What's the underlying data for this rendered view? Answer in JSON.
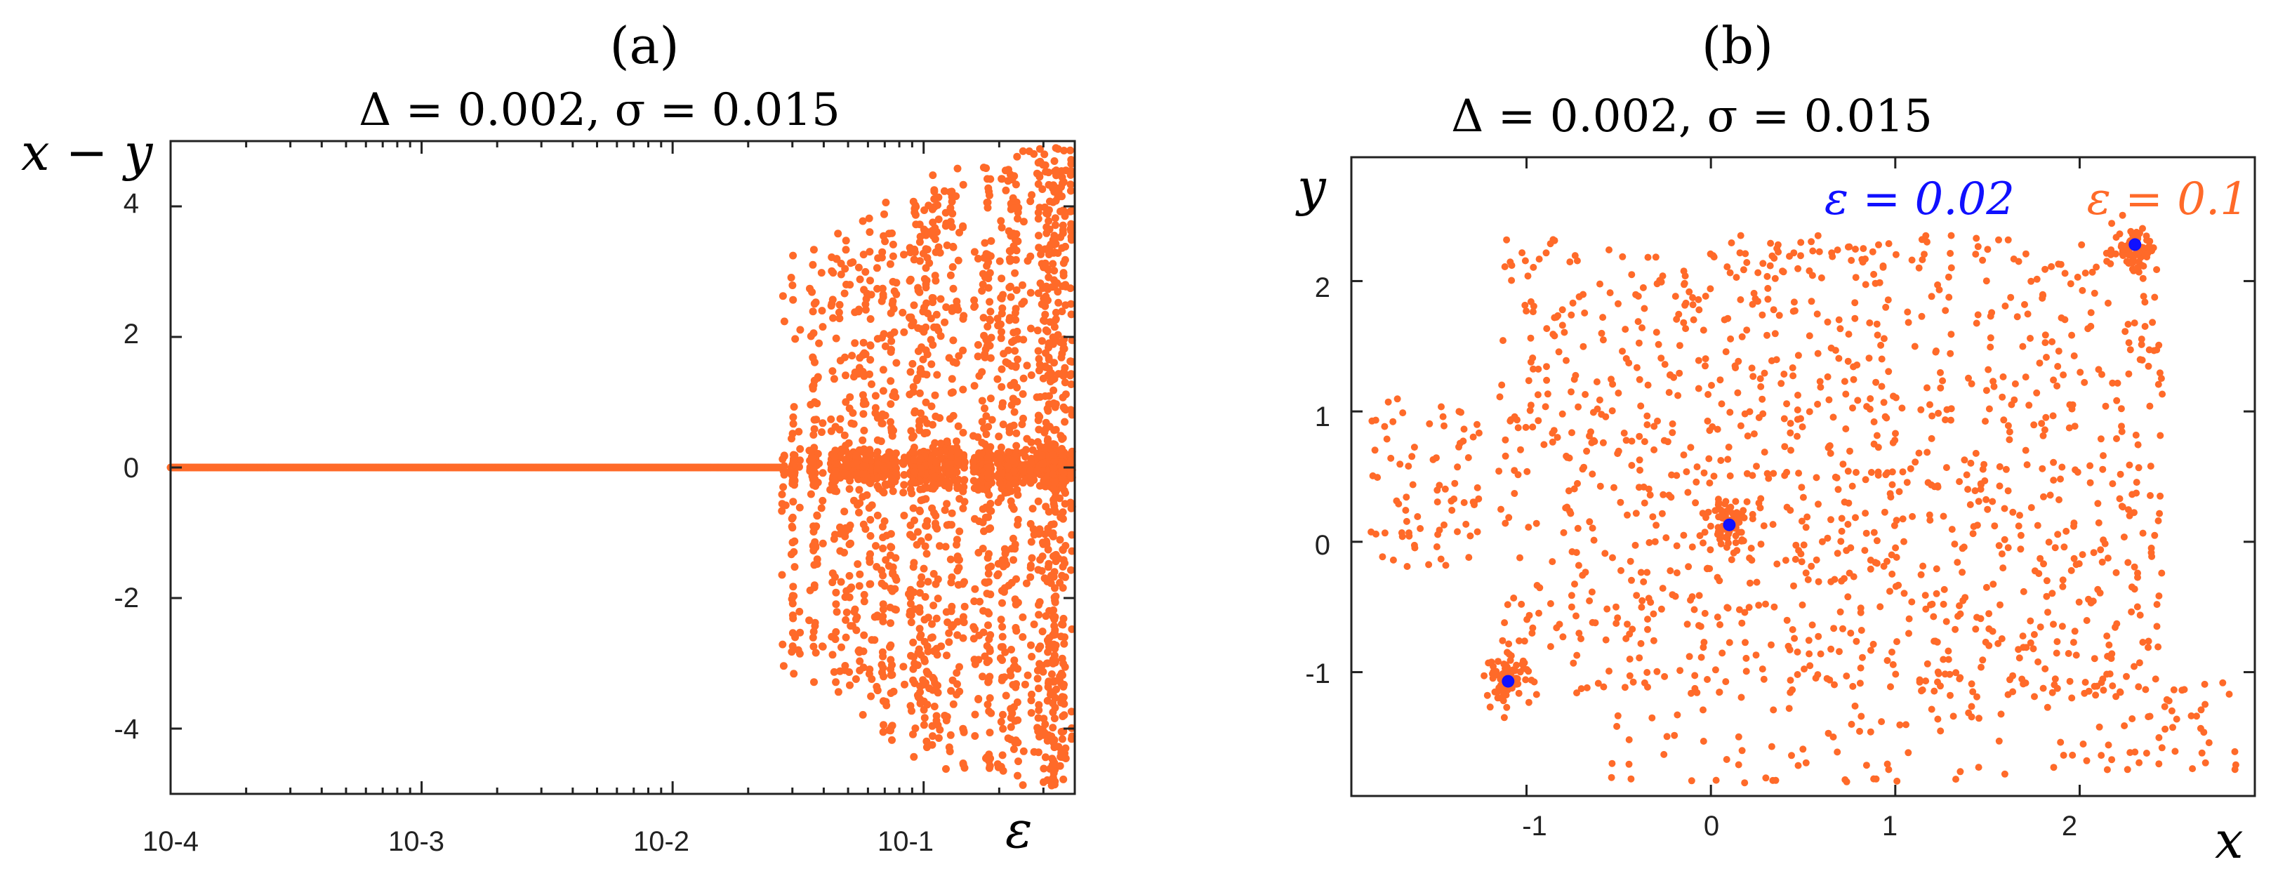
{
  "colors": {
    "orange": "#ff6a29",
    "blue": "#1010ff",
    "axis": "#222222",
    "text": "#000000"
  },
  "chart_data": [
    {
      "panel_label": "(a)",
      "type": "scatter",
      "title": "Δ = 0.002, σ = 0.015",
      "xlabel": "ε",
      "ylabel": "x − y",
      "x_scale": "log",
      "xlim": [
        0.0001,
        0.4
      ],
      "ylim": [
        -5,
        5
      ],
      "x_ticks": [
        "10-4",
        "10-3",
        "10-2",
        "10-1"
      ],
      "y_ticks": [
        "4",
        "2",
        "0",
        "-2",
        "-4"
      ],
      "grid": false,
      "series": [
        {
          "color": "#ff6a29",
          "description_points": [
            {
              "x_range": [
                0.0001,
                0.027
              ],
              "y": 0
            },
            {
              "x_range": [
                0.027,
                0.4
              ],
              "y_range": [
                -5,
                5
              ]
            }
          ]
        }
      ]
    },
    {
      "panel_label": "(b)",
      "type": "scatter",
      "title": "Δ = 0.002, σ = 0.015",
      "xlabel": "x",
      "ylabel": "y",
      "xlim": [
        -1.95,
        2.95
      ],
      "ylim": [
        -1.95,
        2.95
      ],
      "x_ticks": [
        "-1",
        "0",
        "1",
        "2"
      ],
      "y_ticks": [
        "2",
        "1",
        "0",
        "-1"
      ],
      "grid": false,
      "legend": [
        {
          "label": "ε = 0.02",
          "color": "#1010ff"
        },
        {
          "label": "ε = 0.1",
          "color": "#ff6a29"
        }
      ],
      "series": [
        {
          "name": "ε = 0.1",
          "color": "#ff6a29",
          "cluster_centers": [
            [
              -1.1,
              -1.05
            ],
            [
              0.1,
              0.15
            ],
            [
              2.3,
              2.25
            ]
          ]
        },
        {
          "name": "ε = 0.02",
          "color": "#1010ff",
          "points": [
            [
              -1.1,
              -1.07
            ],
            [
              0.1,
              0.13
            ],
            [
              2.3,
              2.28
            ]
          ]
        }
      ]
    }
  ]
}
